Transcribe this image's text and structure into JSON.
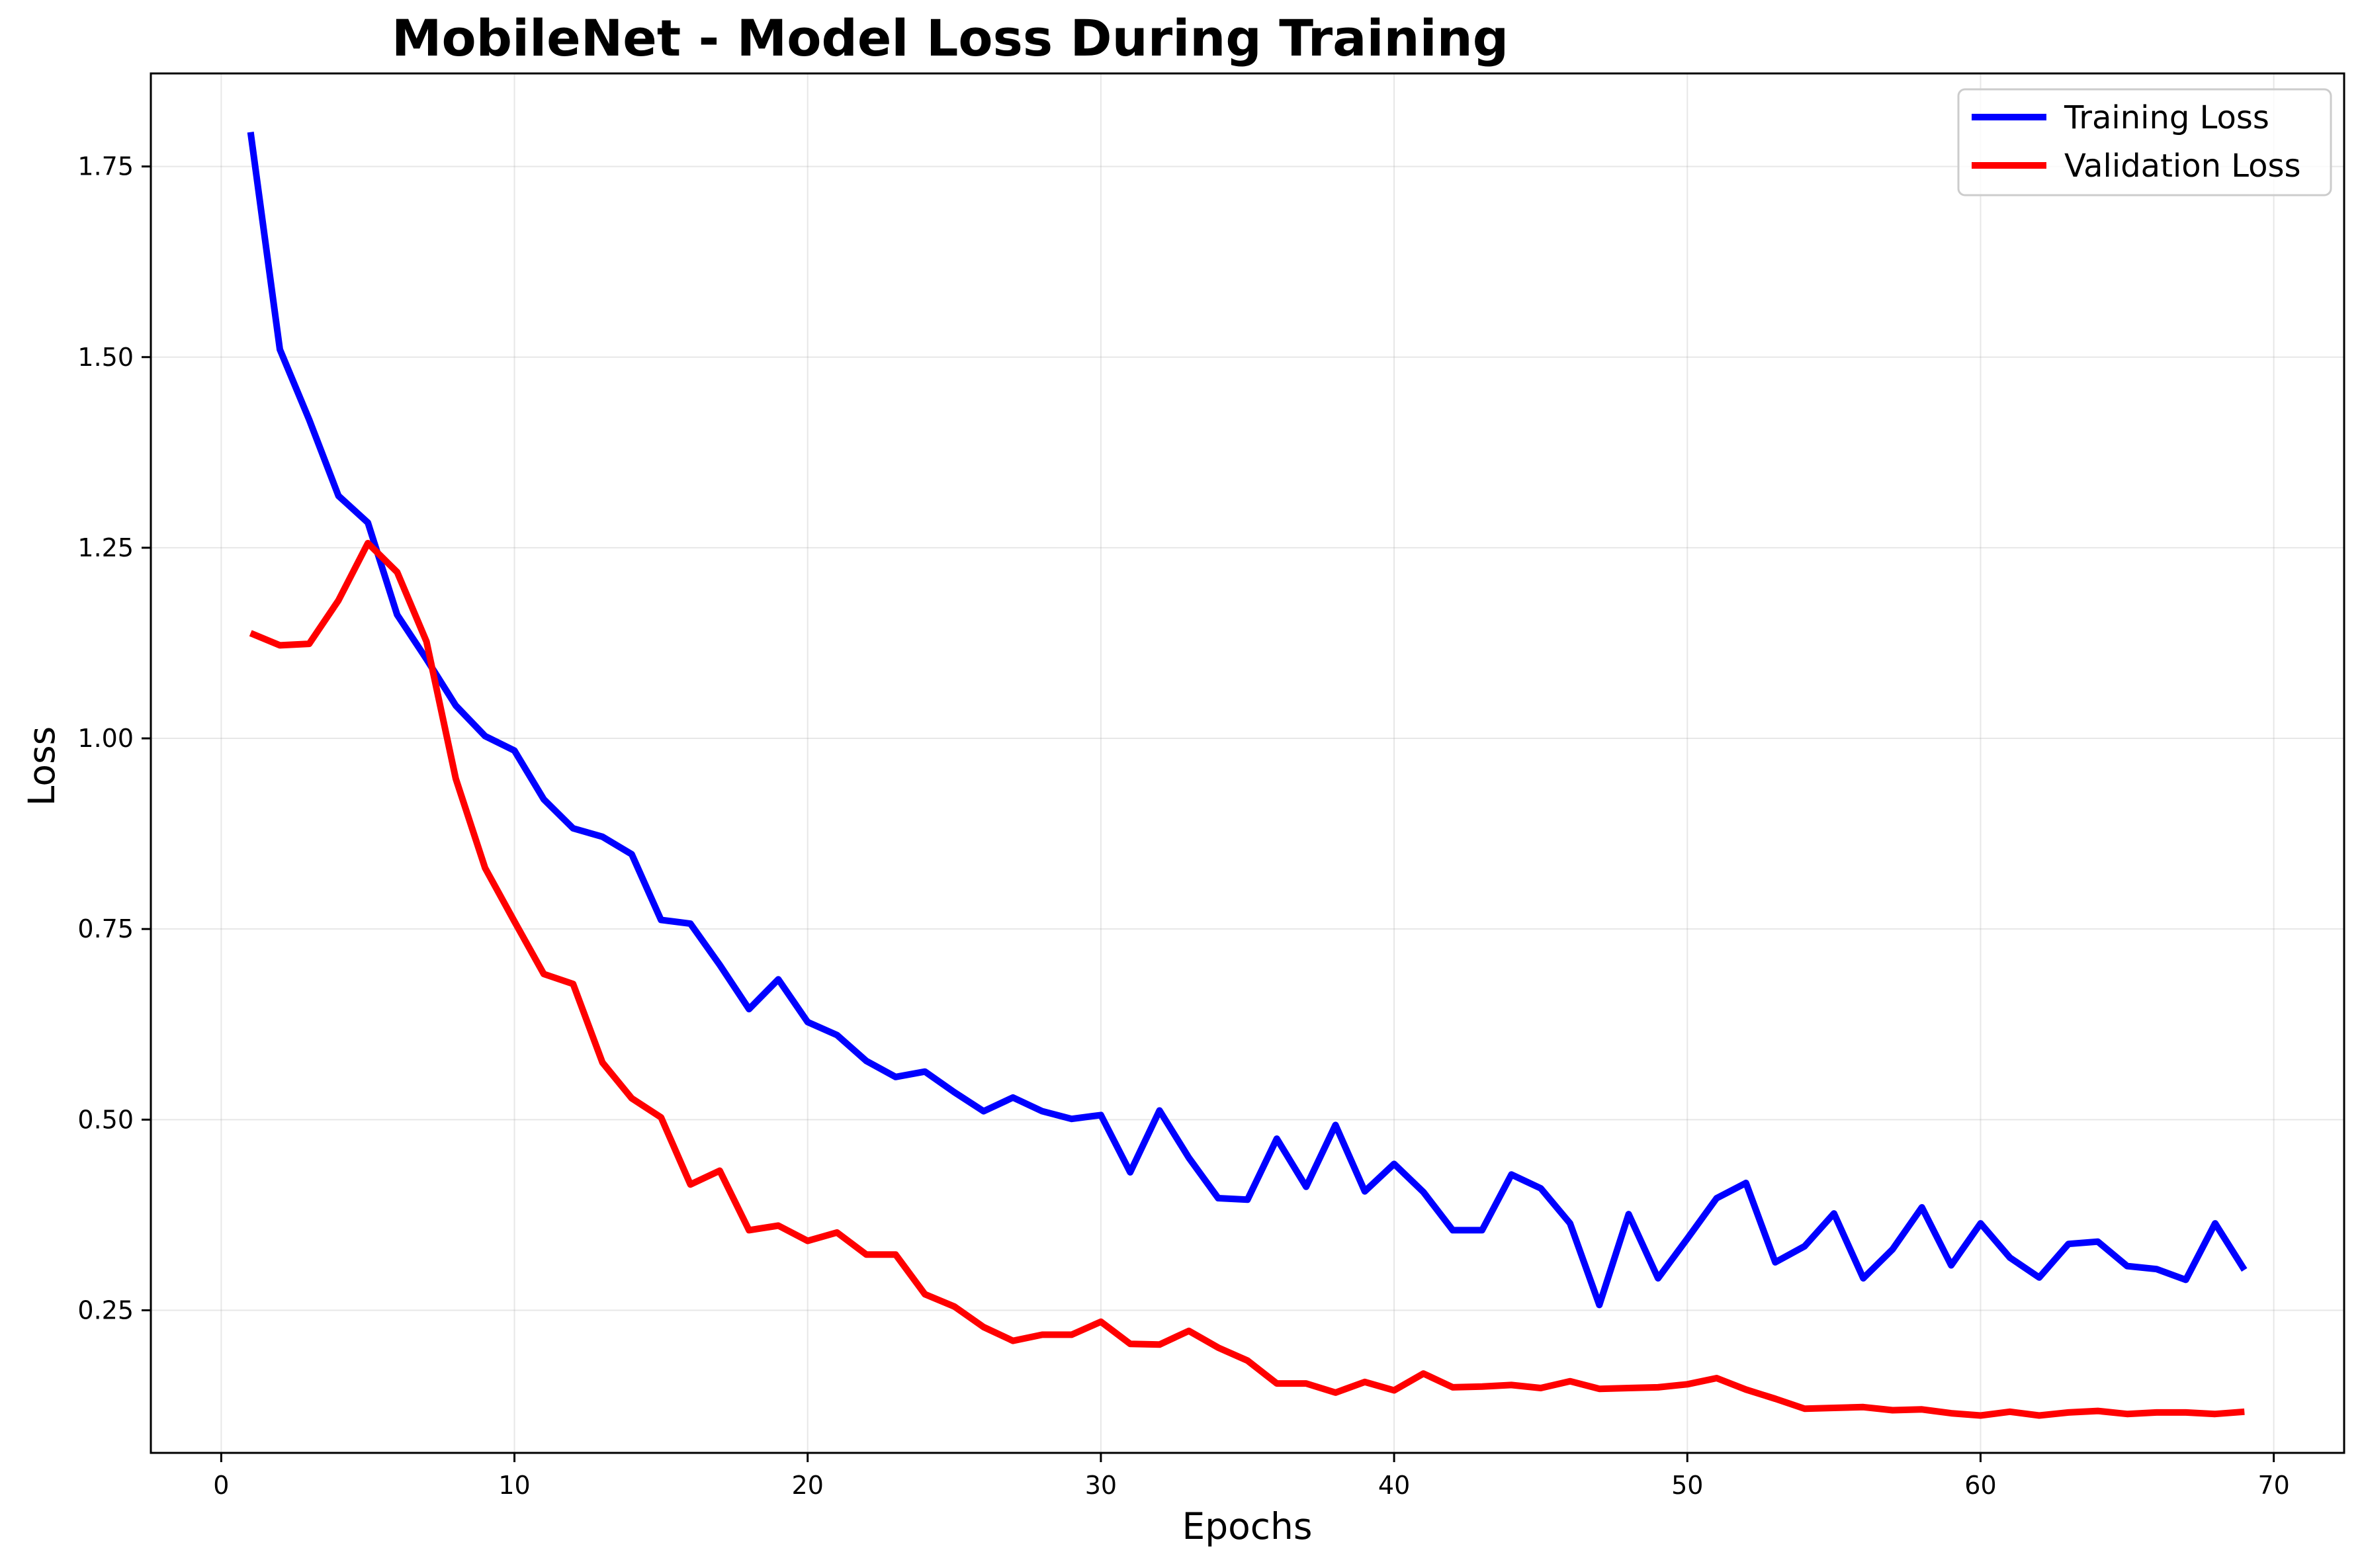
{
  "chart_data": {
    "type": "line",
    "title": "MobileNet - Model Loss During Training",
    "xlabel": "Epochs",
    "ylabel": "Loss",
    "xlim": [
      -2.4,
      72.4
    ],
    "ylim": [
      0.063,
      1.872
    ],
    "xticks": [
      0,
      10,
      20,
      30,
      40,
      50,
      60,
      70
    ],
    "xtick_labels": [
      "0",
      "10",
      "20",
      "30",
      "40",
      "50",
      "60",
      "70"
    ],
    "yticks": [
      0.25,
      0.5,
      0.75,
      1.0,
      1.25,
      1.5,
      1.75
    ],
    "ytick_labels": [
      "0.25",
      "0.50",
      "0.75",
      "1.00",
      "1.25",
      "1.50",
      "1.75"
    ],
    "grid": true,
    "legend_position": "top-right",
    "x": [
      1,
      2,
      3,
      4,
      5,
      6,
      7,
      8,
      9,
      10,
      11,
      12,
      13,
      14,
      15,
      16,
      17,
      18,
      19,
      20,
      21,
      22,
      23,
      24,
      25,
      26,
      27,
      28,
      29,
      30,
      31,
      32,
      33,
      34,
      35,
      36,
      37,
      38,
      39,
      40,
      41,
      42,
      43,
      44,
      45,
      46,
      47,
      48,
      49,
      50,
      51,
      52,
      53,
      54,
      55,
      56,
      57,
      58,
      59,
      60,
      61,
      62,
      63,
      64,
      65,
      66,
      67,
      68,
      69
    ],
    "series": [
      {
        "name": "Training Loss",
        "color": "#0000ff",
        "values": [
          1.795,
          1.51,
          1.418,
          1.318,
          1.283,
          1.162,
          1.104,
          1.043,
          1.003,
          0.984,
          0.92,
          0.882,
          0.871,
          0.848,
          0.762,
          0.757,
          0.703,
          0.645,
          0.684,
          0.628,
          0.611,
          0.577,
          0.556,
          0.563,
          0.536,
          0.511,
          0.529,
          0.511,
          0.501,
          0.506,
          0.431,
          0.512,
          0.45,
          0.397,
          0.395,
          0.475,
          0.412,
          0.493,
          0.406,
          0.442,
          0.405,
          0.355,
          0.355,
          0.428,
          0.41,
          0.364,
          0.257,
          0.376,
          0.292,
          0.344,
          0.397,
          0.417,
          0.313,
          0.334,
          0.377,
          0.292,
          0.33,
          0.385,
          0.309,
          0.364,
          0.319,
          0.293,
          0.337,
          0.34,
          0.308,
          0.304,
          0.29,
          0.364,
          0.303
        ]
      },
      {
        "name": "Validation Loss",
        "color": "#ff0000",
        "values": [
          1.138,
          1.122,
          1.124,
          1.181,
          1.256,
          1.218,
          1.127,
          0.947,
          0.83,
          0.76,
          0.691,
          0.678,
          0.575,
          0.528,
          0.503,
          0.415,
          0.433,
          0.355,
          0.361,
          0.341,
          0.352,
          0.323,
          0.323,
          0.271,
          0.255,
          0.228,
          0.21,
          0.218,
          0.218,
          0.235,
          0.206,
          0.205,
          0.223,
          0.201,
          0.184,
          0.154,
          0.154,
          0.142,
          0.156,
          0.145,
          0.167,
          0.149,
          0.15,
          0.152,
          0.148,
          0.157,
          0.147,
          0.148,
          0.149,
          0.153,
          0.161,
          0.146,
          0.134,
          0.121,
          0.122,
          0.123,
          0.119,
          0.12,
          0.115,
          0.112,
          0.117,
          0.112,
          0.116,
          0.118,
          0.114,
          0.116,
          0.116,
          0.114,
          0.117
        ]
      }
    ]
  }
}
